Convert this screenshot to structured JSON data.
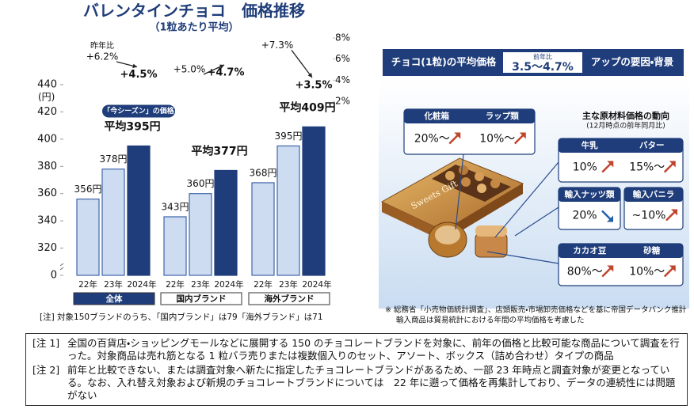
{
  "chart_data": {
    "type": "bar",
    "title": "バレンタインチョコ　価格推移",
    "subtitle": "（1粒あたり平均）",
    "y_unit": "(円)",
    "categories": [
      "22年",
      "23年",
      "2024年"
    ],
    "groups": [
      {
        "name": "全体",
        "values": [
          356,
          378,
          395
        ],
        "value_labels": [
          "356円",
          "378円",
          "平均395円"
        ],
        "callout": "「今シーズン」の価格",
        "yoy": [
          6.2,
          4.5
        ],
        "yoy_labels": [
          "+6.2%",
          "+4.5%"
        ]
      },
      {
        "name": "国内ブランド",
        "values": [
          343,
          360,
          377
        ],
        "value_labels": [
          "343円",
          "360円",
          "平均377円"
        ],
        "yoy": [
          5.0,
          4.7
        ],
        "yoy_labels": [
          "+5.0%",
          "+4.7%"
        ]
      },
      {
        "name": "海外ブランド",
        "values": [
          368,
          395,
          409
        ],
        "value_labels": [
          "368円",
          "395円",
          "平均409円"
        ],
        "yoy": [
          7.3,
          3.5
        ],
        "yoy_labels": [
          "+7.3%",
          "+3.5%"
        ]
      }
    ],
    "yoy_label": "昨年比",
    "colors": [
      "#cddcf0",
      "#cddcf0",
      "#1f3d7a"
    ],
    "ylim": [
      0,
      440
    ],
    "axis_break": 300,
    "yticks": [
      0,
      320,
      340,
      360,
      380,
      400,
      420,
      440
    ],
    "y2lim": [
      2,
      8
    ],
    "y2ticks": [
      {
        "value": 8,
        "label": "8%"
      },
      {
        "value": 6,
        "label": "6%"
      },
      {
        "value": 4,
        "label": "4%"
      },
      {
        "value": 2,
        "label": "2%"
      }
    ],
    "note": "[注] 対象150ブランドのうち、「国内ブランド」は79「海外ブランド」は71"
  },
  "factors": {
    "header": {
      "title": "チョコ(1粒)の平均価格",
      "yoy_label": "前年比",
      "range": "3.5～4.7%",
      "suffix": "アップの要因・背景"
    },
    "materials_heading": "主な原材料価格の動向",
    "materials_sub": "(12月時点の前年同月比)",
    "package_text": "Sweets Gift",
    "boxes": [
      {
        "items": [
          {
            "label": "化粧箱",
            "value": "20%～",
            "trend": "up"
          },
          {
            "label": "ラップ類",
            "value": "10%～",
            "trend": "up"
          }
        ]
      },
      {
        "items": [
          {
            "label": "牛乳",
            "value": "10%",
            "trend": "up"
          },
          {
            "label": "バター",
            "value": "15%～",
            "trend": "up"
          }
        ]
      },
      {
        "items": [
          {
            "label": "輸入ナッツ類",
            "value": "20%",
            "trend": "down"
          }
        ]
      },
      {
        "items": [
          {
            "label": "輸入バニラ",
            "value": "~10%",
            "trend": "up"
          }
        ]
      },
      {
        "items": [
          {
            "label": "カカオ豆",
            "value": "80%～",
            "trend": "up"
          },
          {
            "label": "砂糖",
            "value": "10%～",
            "trend": "up"
          }
        ]
      }
    ],
    "source": [
      "※ 総務省「小売物価統計調査」、店頭販売・市場卸売価格などを基に帝国データバンク推計",
      "輸入商品は貿易統計における年間の平均価格を考慮した"
    ]
  },
  "notes": [
    {
      "label": "[注 1]",
      "text": "全国の百貨店・ショッピングモールなどに展開する 150 のチョコレートブランドを対象に、前年の価格と比較可能な商品について調査を行った。対象商品は売れ筋となる 1 粒バラ売りまたは複数個入りのセット、アソート、ボックス（詰め合わせ）タイプの商品"
    },
    {
      "label": "[注 2]",
      "text": "前年と比較できない、または調査対象へ新たに指定したチョコレートブランドがあるため、一部 23 年時点と調査対象が変更となっている。なお、入れ替え対象および新規のチョコレートブランドについては　22 年に遡って価格を再集計しており、データの連続性には問題がない"
    }
  ]
}
